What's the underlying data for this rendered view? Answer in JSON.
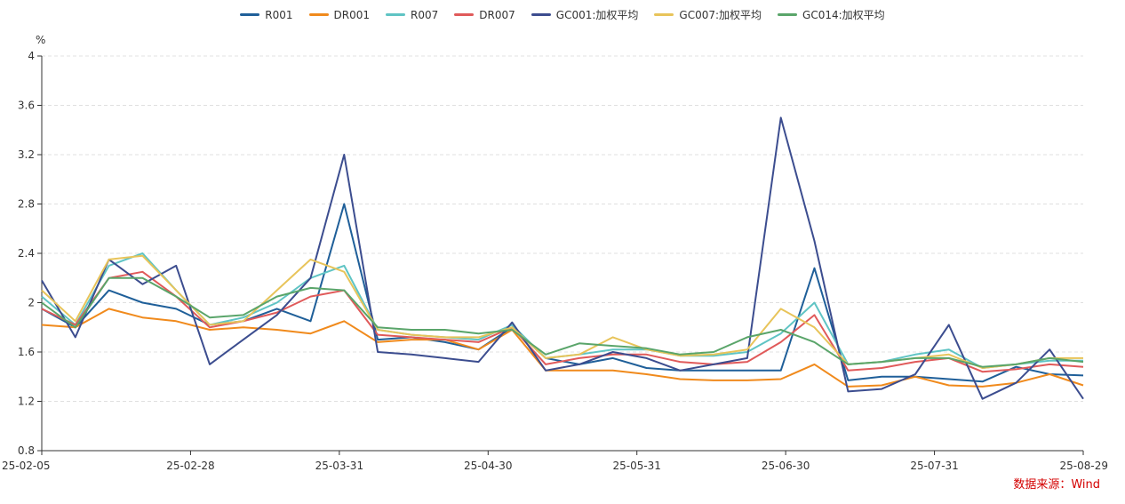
{
  "chart_data": {
    "type": "line",
    "title": "",
    "xlabel": "",
    "ylabel": "%",
    "ylim": [
      0.8,
      4.0
    ],
    "y_ticks": [
      0.8,
      1.2,
      1.6,
      2.0,
      2.4,
      2.8,
      3.2,
      3.6,
      4.0
    ],
    "y_tick_labels": [
      "0.8",
      "1.2",
      "1.6",
      "2",
      "2.4",
      "2.8",
      "3.2",
      "3.6",
      "4"
    ],
    "x_ticks": [
      "25-02-05",
      "25-02-28",
      "25-03-31",
      "25-04-30",
      "25-05-31",
      "25-06-30",
      "25-07-31",
      "25-08-29"
    ],
    "grid": true,
    "legend_position": "top",
    "x": [
      "25-02-05",
      "25-02-12",
      "25-02-19",
      "25-02-25",
      "25-02-28",
      "25-03-07",
      "25-03-14",
      "25-03-21",
      "25-03-27",
      "25-03-31",
      "25-04-07",
      "25-04-14",
      "25-04-21",
      "25-04-25",
      "25-04-30",
      "25-05-09",
      "25-05-16",
      "25-05-23",
      "25-05-31",
      "25-06-06",
      "25-06-13",
      "25-06-20",
      "25-06-26",
      "25-06-30",
      "25-07-07",
      "25-07-14",
      "25-07-21",
      "25-07-31",
      "25-08-07",
      "25-08-14",
      "25-08-21",
      "25-08-29"
    ],
    "series": [
      {
        "name": "R001",
        "color": "#1f5f99",
        "values": [
          1.95,
          1.8,
          2.1,
          2.0,
          1.95,
          1.82,
          1.85,
          1.95,
          1.85,
          2.8,
          1.7,
          1.72,
          1.68,
          1.62,
          1.8,
          1.55,
          1.5,
          1.55,
          1.47,
          1.45,
          1.45,
          1.45,
          1.45,
          2.28,
          1.37,
          1.4,
          1.4,
          1.38,
          1.36,
          1.48,
          1.42,
          1.41
        ]
      },
      {
        "name": "DR001",
        "color": "#f08a1c",
        "values": [
          1.82,
          1.8,
          1.95,
          1.88,
          1.85,
          1.78,
          1.8,
          1.78,
          1.75,
          1.85,
          1.68,
          1.7,
          1.7,
          1.62,
          1.78,
          1.45,
          1.45,
          1.45,
          1.42,
          1.38,
          1.37,
          1.37,
          1.38,
          1.5,
          1.32,
          1.33,
          1.4,
          1.33,
          1.32,
          1.35,
          1.42,
          1.33
        ]
      },
      {
        "name": "R007",
        "color": "#5fc4c4",
        "values": [
          2.05,
          1.82,
          2.3,
          2.4,
          2.1,
          1.82,
          1.88,
          2.0,
          2.2,
          2.3,
          1.78,
          1.74,
          1.72,
          1.7,
          1.82,
          1.55,
          1.58,
          1.62,
          1.62,
          1.57,
          1.57,
          1.6,
          1.75,
          2.0,
          1.5,
          1.52,
          1.58,
          1.62,
          1.47,
          1.5,
          1.53,
          1.53
        ]
      },
      {
        "name": "DR007",
        "color": "#e05a5a",
        "values": [
          1.95,
          1.82,
          2.2,
          2.25,
          2.05,
          1.8,
          1.85,
          1.92,
          2.05,
          2.1,
          1.74,
          1.72,
          1.7,
          1.68,
          1.8,
          1.5,
          1.55,
          1.58,
          1.58,
          1.52,
          1.5,
          1.52,
          1.68,
          1.9,
          1.45,
          1.47,
          1.52,
          1.55,
          1.44,
          1.46,
          1.5,
          1.48
        ]
      },
      {
        "name": "GC001:加权平均",
        "color": "#3c4d8f",
        "values": [
          2.18,
          1.72,
          2.35,
          2.15,
          2.3,
          1.5,
          1.7,
          1.9,
          2.2,
          3.2,
          1.6,
          1.58,
          1.55,
          1.52,
          1.84,
          1.45,
          1.5,
          1.6,
          1.55,
          1.45,
          1.5,
          1.55,
          3.5,
          2.5,
          1.28,
          1.3,
          1.42,
          1.82,
          1.22,
          1.35,
          1.62,
          1.22
        ]
      },
      {
        "name": "GC007:加权平均",
        "color": "#e8c45a",
        "values": [
          2.1,
          1.85,
          2.35,
          2.38,
          2.1,
          1.82,
          1.85,
          2.1,
          2.35,
          2.25,
          1.78,
          1.74,
          1.72,
          1.72,
          1.8,
          1.55,
          1.58,
          1.72,
          1.62,
          1.57,
          1.58,
          1.62,
          1.95,
          1.8,
          1.5,
          1.52,
          1.55,
          1.58,
          1.47,
          1.5,
          1.55,
          1.55
        ]
      },
      {
        "name": "GC014:加权平均",
        "color": "#5aa56a",
        "values": [
          2.0,
          1.8,
          2.2,
          2.2,
          2.05,
          1.88,
          1.9,
          2.05,
          2.12,
          2.1,
          1.8,
          1.78,
          1.78,
          1.75,
          1.78,
          1.58,
          1.67,
          1.65,
          1.63,
          1.58,
          1.6,
          1.72,
          1.78,
          1.68,
          1.5,
          1.52,
          1.55,
          1.55,
          1.48,
          1.5,
          1.55,
          1.52
        ]
      }
    ]
  },
  "source": "数据来源：Wind"
}
